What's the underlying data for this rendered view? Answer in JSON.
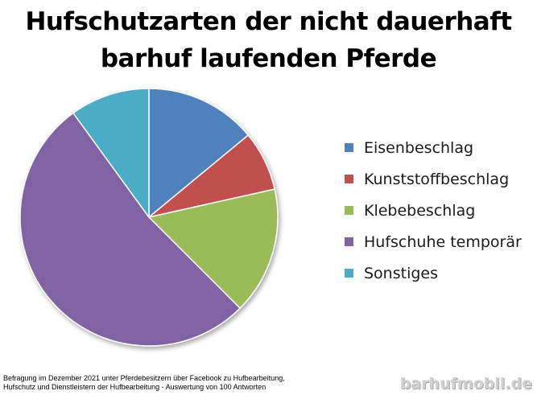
{
  "chart_data": {
    "type": "pie",
    "title_lines": [
      "Hufschutzarten der nicht dauerhaft",
      "barhuf laufenden Pferde"
    ],
    "categories": [
      "Eisenbeschlag",
      "Kunststoffbeschlag",
      "Klebebeschlag",
      "Hufschuhe temporär",
      "Sonstiges"
    ],
    "values": [
      14,
      7.5,
      16,
      52.5,
      10
    ],
    "colors": [
      "#4f81bd",
      "#c0504d",
      "#9bbb59",
      "#8064a2",
      "#4bacc6"
    ],
    "legend_position": "right"
  },
  "footnote": {
    "line1": "Befragung im Dezember 2021 unter Pferdebesitzern über Facebook zu Hufbearbeitung,",
    "line2": "Hufschutz und Dienstleistern der Hufbearbeitung - Auswertung von 100 Antworten"
  },
  "watermark": "barhufmobil.de"
}
